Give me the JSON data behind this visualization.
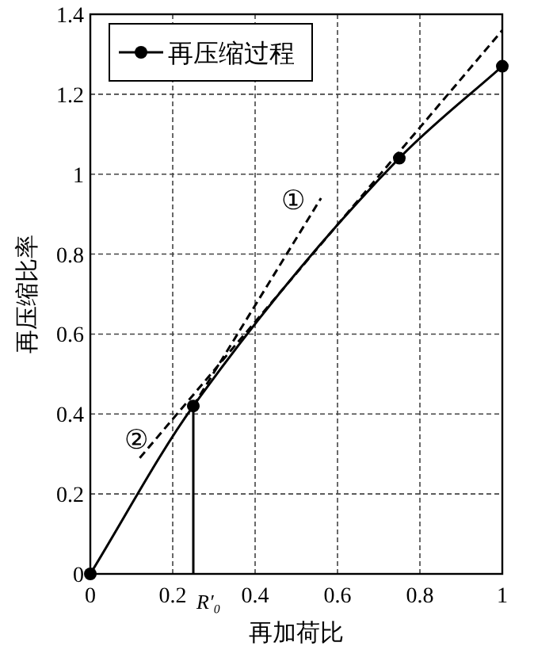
{
  "chart_data": {
    "type": "line",
    "xlabel": "再加荷比",
    "ylabel": "再压缩比率",
    "xlim": [
      0,
      1
    ],
    "ylim": [
      0,
      1.4
    ],
    "xticks": [
      0,
      0.2,
      0.4,
      0.6,
      0.8,
      1
    ],
    "yticks": [
      0,
      0.2,
      0.4,
      0.6,
      0.8,
      1,
      1.2,
      1.4
    ],
    "grid": true,
    "legend": "top left",
    "series": [
      {
        "name": "再压缩过程",
        "color": "#000000",
        "x": [
          0,
          0.25,
          0.75,
          1
        ],
        "values": [
          0,
          0.42,
          1.04,
          1.27
        ],
        "marker": "circle",
        "line_style": "solid"
      },
      {
        "color": "#000000",
        "x": [
          0.25,
          0.56
        ],
        "values": [
          0.42,
          0.94
        ],
        "marker": "none",
        "line_style": "dashed"
      },
      {
        "color": "#000000",
        "x": [
          0.12,
          1
        ],
        "values": [
          0.29,
          1.36
        ],
        "marker": "none",
        "line_style": "dashed"
      },
      {
        "color": "#000000",
        "x": [
          0.25,
          0.25
        ],
        "values": [
          0,
          0.42
        ],
        "marker": "none",
        "line_style": "solid"
      }
    ],
    "annotations": [
      "①",
      "②",
      "R′₀"
    ]
  }
}
